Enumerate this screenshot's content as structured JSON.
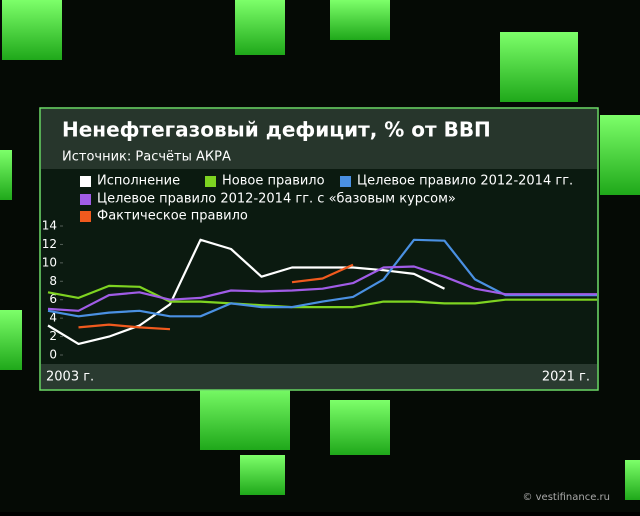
{
  "chart_data": {
    "type": "line",
    "title": "Ненефтегазовый дефицит, % от ВВП",
    "subtitle": "Источник: Расчёты АКРА",
    "categories": [
      "2003 г.",
      null,
      null,
      null,
      null,
      null,
      null,
      null,
      null,
      null,
      null,
      null,
      null,
      null,
      null,
      null,
      null,
      null,
      "2021 г."
    ],
    "ylim": [
      0,
      14
    ],
    "yticks": [
      0,
      2,
      4,
      6,
      8,
      10,
      12,
      14
    ],
    "series": [
      {
        "name": "Исполнение",
        "color": "#ffffff",
        "values": [
          3.2,
          1.2,
          2.0,
          3.2,
          5.5,
          12.5,
          11.5,
          8.5,
          9.5,
          9.5,
          9.5,
          9.2,
          8.8,
          7.2,
          null,
          null,
          null,
          null,
          null
        ]
      },
      {
        "name": "Новое правило",
        "color": "#7ed321",
        "values": [
          6.8,
          6.2,
          7.5,
          7.4,
          5.8,
          5.8,
          5.6,
          5.4,
          5.2,
          5.2,
          5.2,
          5.8,
          5.8,
          5.6,
          5.6,
          6.0,
          6.0,
          6.0,
          6.0
        ]
      },
      {
        "name": "Целевое правило 2012-2014 гг.",
        "color": "#4a90e2",
        "values": [
          4.8,
          4.2,
          4.6,
          4.8,
          4.2,
          4.2,
          5.6,
          5.2,
          5.2,
          5.8,
          6.3,
          8.2,
          12.5,
          12.4,
          8.2,
          6.5,
          6.5,
          6.5,
          6.5
        ]
      },
      {
        "name": "Целевое правило 2012-2014 гг. с «базовым курсом»",
        "color": "#a05ce6",
        "values": [
          5.0,
          4.8,
          6.5,
          6.8,
          6.0,
          6.2,
          7.0,
          6.9,
          7.0,
          7.2,
          7.8,
          9.5,
          9.6,
          8.5,
          7.2,
          6.6,
          6.6,
          6.6,
          6.6
        ]
      },
      {
        "name": "Фактическое правило",
        "color": "#f05a1e",
        "values": [
          null,
          3.0,
          3.3,
          3.0,
          2.8,
          null,
          null,
          null,
          7.9,
          8.3,
          9.8,
          null,
          null,
          null,
          null,
          null,
          null,
          null,
          null
        ]
      }
    ],
    "watermark": "© vestifinance.ru"
  }
}
